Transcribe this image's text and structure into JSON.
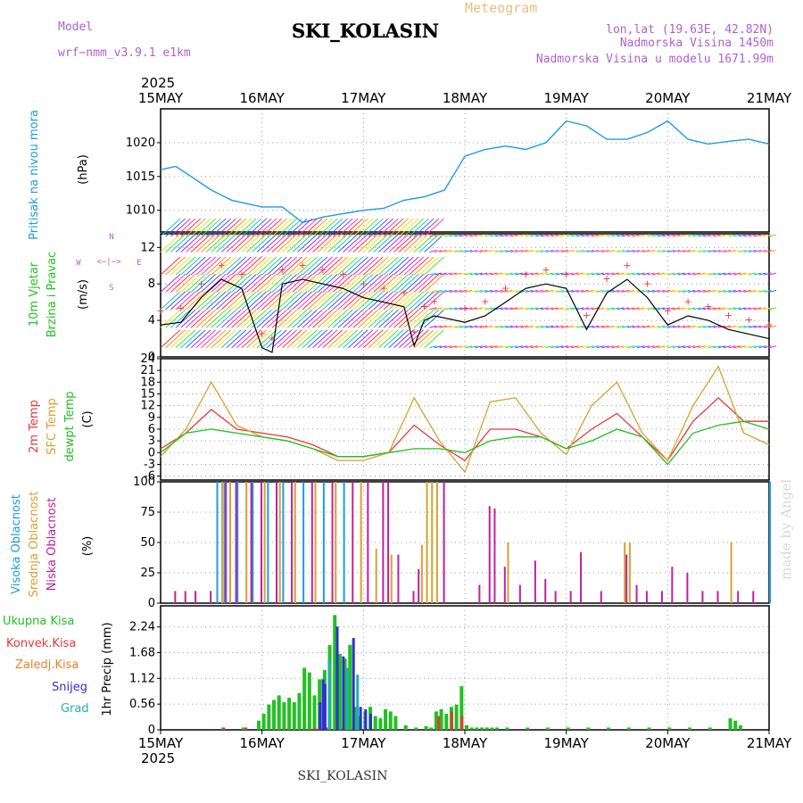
{
  "header": {
    "model_label": "Model",
    "model_name": "wrf−nmm_v3.9.1  e1km",
    "title": "SKI_KOLASIN",
    "meteogram": "Meteogram",
    "lonlat": "lon,lat (19.63E, 42.82N)",
    "elevation": "Nadmorska Visina 1450m",
    "model_elevation": "Nadmorska Visina u modelu 1671.99m",
    "year_top": "2025",
    "year_bottom": "2025",
    "footer": "SKI_KOLASIN",
    "watermark": "made by Angel"
  },
  "dates": [
    "15MAY",
    "16MAY",
    "17MAY",
    "18MAY",
    "19MAY",
    "20MAY",
    "21MAY"
  ],
  "colors": {
    "pressure": "#1f9be0",
    "temp2m": "#e83838",
    "sfc": "#d9a030",
    "dewpt": "#22c022",
    "high_cloud": "#1f9be0",
    "mid_cloud": "#d9a030",
    "low_cloud": "#c020a0",
    "precip_total": "#22c022",
    "precip_conv": "#e83838",
    "precip_snow": "#3030d0",
    "precip_grad": "#20b0b0"
  },
  "chart_data": [
    {
      "type": "line",
      "panel": "pressure",
      "ylabel_main": "Pritisak na nivou mora",
      "ylabel_unit": "(hPa)",
      "yticks": [
        "1010",
        "1015",
        "1020"
      ],
      "ylim": [
        1006.8,
        1025.0
      ],
      "x_days": [
        0,
        0.15,
        0.3,
        0.5,
        0.7,
        0.85,
        1.0,
        1.2,
        1.4,
        1.6,
        1.8,
        2.0,
        2.2,
        2.4,
        2.6,
        2.8,
        3.0,
        3.2,
        3.4,
        3.6,
        3.8,
        4.0,
        4.2,
        4.4,
        4.6,
        4.8,
        5.0,
        5.2,
        5.4,
        5.6,
        5.8,
        6.0
      ],
      "values": [
        1016.0,
        1016.5,
        1015.0,
        1013.0,
        1011.5,
        1011.0,
        1010.5,
        1010.5,
        1008.2,
        1009.0,
        1009.5,
        1010.0,
        1010.3,
        1011.5,
        1012.0,
        1013.0,
        1018.0,
        1019.0,
        1019.5,
        1019.0,
        1020.0,
        1023.2,
        1022.5,
        1020.5,
        1020.5,
        1021.5,
        1023.2,
        1020.5,
        1019.8,
        1020.2,
        1020.5,
        1019.8
      ],
      "series": [
        {
          "name": "Pritisak na nivou mora"
        }
      ]
    },
    {
      "type": "line",
      "panel": "wind",
      "ylabel_main": "10m Vjetar",
      "ylabel_sub": "Brzina i Pravac",
      "ylabel_unit": "(m/s)",
      "compass": [
        "N",
        "W",
        "E",
        "S"
      ],
      "yticks": [
        "0",
        "4",
        "8",
        "12"
      ],
      "ylim": [
        0,
        13.5
      ],
      "x_days": [
        0,
        0.2,
        0.4,
        0.6,
        0.8,
        1.0,
        1.1,
        1.2,
        1.4,
        1.6,
        1.8,
        2.0,
        2.2,
        2.4,
        2.5,
        2.6,
        2.7,
        3.0,
        3.2,
        3.4,
        3.6,
        3.8,
        4.0,
        4.2,
        4.4,
        4.6,
        4.8,
        5.0,
        5.2,
        5.4,
        5.6,
        5.8,
        6.0
      ],
      "values": [
        3.5,
        3.8,
        6.5,
        8.5,
        7.5,
        1.0,
        0.5,
        8.0,
        8.5,
        8.0,
        7.5,
        6.5,
        6.0,
        5.5,
        1.2,
        4.0,
        4.5,
        3.8,
        4.5,
        6.0,
        7.5,
        8.0,
        7.5,
        3.0,
        7.0,
        8.5,
        6.5,
        3.5,
        4.5,
        4.0,
        3.0,
        2.5,
        2.0
      ],
      "series": [
        {
          "name": "10m Vjetar"
        }
      ]
    },
    {
      "type": "line",
      "panel": "temperature",
      "ylabel_unit": "(C)",
      "yticks": [
        "-6",
        "-3",
        "0",
        "3",
        "6",
        "9",
        "12",
        "15",
        "18",
        "21",
        "24"
      ],
      "ylim": [
        -7,
        24
      ],
      "x_days": [
        0,
        0.25,
        0.5,
        0.75,
        1.0,
        1.25,
        1.5,
        1.75,
        2.0,
        2.25,
        2.5,
        2.75,
        3.0,
        3.25,
        3.5,
        3.75,
        4.0,
        4.25,
        4.5,
        4.75,
        5.0,
        5.25,
        5.5,
        5.75,
        6.0
      ],
      "series": [
        {
          "name": "2m Temp",
          "values": [
            1,
            5,
            11,
            6,
            5,
            4,
            2,
            -1,
            -1,
            0,
            7,
            2,
            -2,
            6,
            6,
            4,
            1,
            6,
            10,
            4,
            -2,
            8,
            14,
            8,
            8
          ]
        },
        {
          "name": "SFC Temp",
          "values": [
            -1,
            6,
            18,
            7,
            4,
            3,
            1,
            -2,
            -2,
            0,
            14,
            3,
            -5,
            13,
            14,
            5,
            -0.5,
            12,
            18,
            5,
            -2,
            12,
            22,
            5,
            2
          ]
        },
        {
          "name": "dewpt Temp",
          "values": [
            0,
            5,
            6,
            5,
            4,
            3,
            1,
            -1,
            -1,
            0,
            1,
            1,
            0,
            3,
            4,
            4,
            1,
            3,
            6,
            4,
            -3,
            5,
            7,
            8,
            6
          ]
        }
      ]
    },
    {
      "type": "bar",
      "panel": "cloud",
      "ylabel_unit": "(%)",
      "yticks": [
        "0",
        "25",
        "50",
        "75",
        "100"
      ],
      "ylim": [
        0,
        100
      ],
      "series": [
        {
          "name": "Visoka Oblacnost",
          "x_days": [
            0.55,
            0.62,
            0.75,
            0.9,
            1.05,
            1.2,
            1.4,
            1.6,
            1.8,
            6.0
          ],
          "values": [
            100,
            100,
            100,
            100,
            100,
            100,
            100,
            100,
            100,
            100
          ]
        },
        {
          "name": "Srednja Oblacnost",
          "x_days": [
            0.58,
            0.66,
            0.82,
            1.0,
            1.15,
            1.3,
            1.5,
            1.7,
            1.95,
            2.1,
            2.25,
            2.55,
            2.6,
            2.65,
            2.7,
            3.4,
            4.55,
            4.6,
            5.6
          ],
          "values": [
            100,
            100,
            100,
            100,
            100,
            100,
            100,
            100,
            100,
            45,
            40,
            48,
            100,
            100,
            100,
            50,
            50,
            50,
            50
          ]
        },
        {
          "name": "Niska Oblacnost",
          "x_days": [
            0.1,
            0.2,
            0.3,
            0.45,
            0.6,
            0.7,
            0.85,
            0.95,
            1.1,
            1.25,
            1.45,
            1.65,
            1.85,
            2.0,
            2.15,
            2.2,
            2.3,
            2.45,
            2.5,
            2.75,
            3.1,
            3.2,
            3.25,
            3.35,
            3.5,
            3.65,
            3.75,
            3.85,
            4.0,
            4.1,
            4.3,
            4.55,
            4.65,
            4.75,
            4.9,
            5.0,
            5.15,
            5.3,
            5.45,
            5.65,
            5.8
          ],
          "values": [
            10,
            10,
            10,
            10,
            100,
            100,
            100,
            100,
            100,
            100,
            100,
            100,
            100,
            100,
            100,
            100,
            40,
            10,
            28,
            100,
            15,
            80,
            78,
            30,
            15,
            35,
            20,
            10,
            10,
            42,
            10,
            40,
            15,
            10,
            10,
            30,
            25,
            10,
            10,
            10,
            10
          ]
        }
      ]
    },
    {
      "type": "bar",
      "panel": "precip",
      "ylabel_unit": "1hr Precip (mm)",
      "legend": [
        "Ukupna Kisa",
        "Konvek.Kisa",
        "Zaledj.Kisa",
        "Snijeg",
        "Grad"
      ],
      "yticks": [
        "0",
        "0.56",
        "1.12",
        "1.68",
        "2.24"
      ],
      "ylim": [
        0,
        2.7
      ],
      "series": [
        {
          "name": "Ukupna Kisa",
          "x_days": [
            0.6,
            0.8,
            0.95,
            1.0,
            1.05,
            1.1,
            1.15,
            1.2,
            1.25,
            1.3,
            1.35,
            1.4,
            1.45,
            1.5,
            1.55,
            1.6,
            1.65,
            1.7,
            1.75,
            1.8,
            1.85,
            1.9,
            1.95,
            2.0,
            2.05,
            2.1,
            2.15,
            2.2,
            2.25,
            2.3,
            2.4,
            2.5,
            2.6,
            2.65,
            2.7,
            2.75,
            2.8,
            2.85,
            2.9,
            2.95,
            3.0,
            3.05,
            3.1,
            3.15,
            3.2,
            3.25,
            3.3,
            3.4,
            3.6,
            3.8,
            4.0,
            4.2,
            4.4,
            4.6,
            4.8,
            5.0,
            5.2,
            5.4,
            5.6,
            5.65,
            5.7
          ],
          "values": [
            0.05,
            0.05,
            0.2,
            0.35,
            0.55,
            0.65,
            0.75,
            0.6,
            0.7,
            0.6,
            0.8,
            1.35,
            1.25,
            0.75,
            1.1,
            1.3,
            1.85,
            2.5,
            1.65,
            1.55,
            1.85,
            0.5,
            0.3,
            0.4,
            0.5,
            0.3,
            0.25,
            0.45,
            0.4,
            0.3,
            0.1,
            0.05,
            0.08,
            0.05,
            0.4,
            0.45,
            0.35,
            0.5,
            0.55,
            0.95,
            0.1,
            0.05,
            0.05,
            0.05,
            0.05,
            0.05,
            0.05,
            0.05,
            0.05,
            0.05,
            0.05,
            0.05,
            0.05,
            0.05,
            0.05,
            0.05,
            0.05,
            0.05,
            0.25,
            0.2,
            0.1
          ]
        },
        {
          "name": "Konvek.Kisa",
          "x_days": [
            0.6,
            0.82,
            1.5,
            1.62,
            2.72,
            2.85,
            2.95
          ],
          "values": [
            0.05,
            0.05,
            0.05,
            0.05,
            0.3,
            0.4,
            0.3
          ]
        },
        {
          "name": "Snijeg",
          "x_days": [
            1.55,
            1.58,
            1.6,
            1.72,
            1.78,
            1.88,
            1.95,
            2.0,
            2.05
          ],
          "values": [
            0.6,
            1.1,
            1.0,
            2.25,
            1.6,
            2.0,
            0.5,
            0.45,
            0.35
          ]
        },
        {
          "name": "Grad",
          "x_days": [
            1.64,
            1.82,
            1.92
          ],
          "values": [
            1.55,
            1.35,
            1.2
          ]
        }
      ]
    }
  ]
}
